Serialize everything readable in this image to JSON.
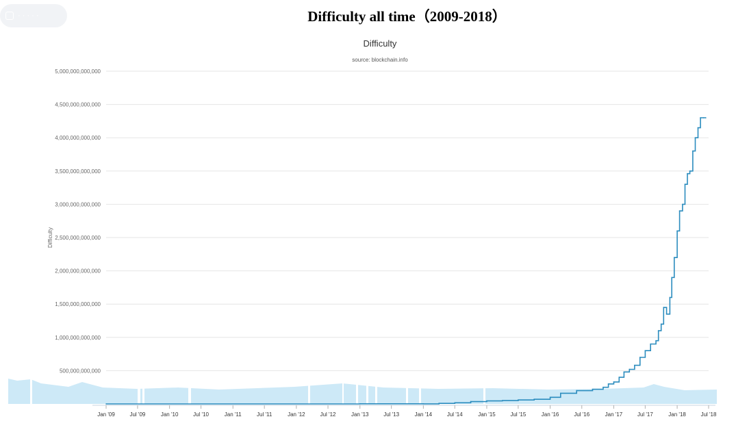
{
  "page": {
    "title": "Difficulty all time（2009-2018）",
    "overlay_label": "· · · · ·"
  },
  "chart_data": {
    "type": "line",
    "title": "Difficulty",
    "subtitle": "source: blockchain.info",
    "ylabel": "Difficulty",
    "xlabel": "",
    "ylim": [
      0,
      5000000000000
    ],
    "y_ticks": [
      500000000000,
      1000000000000,
      1500000000000,
      2000000000000,
      2500000000000,
      3000000000000,
      3500000000000,
      4000000000000,
      4500000000000,
      5000000000000
    ],
    "y_tick_labels": [
      "500,000,000,000",
      "1,000,000,000,000",
      "1,500,000,000,000",
      "2,000,000,000,000",
      "2,500,000,000,000",
      "3,000,000,000,000",
      "3,500,000,000,000",
      "4,000,000,000,000",
      "4,500,000,000,000",
      "5,000,000,000,000"
    ],
    "x_ticks": [
      "2009-01-01",
      "2009-07-01",
      "2010-01-01",
      "2010-07-01",
      "2011-01-01",
      "2011-07-01",
      "2012-01-01",
      "2012-07-01",
      "2013-01-01",
      "2013-07-01",
      "2014-01-01",
      "2014-07-01",
      "2015-01-01",
      "2015-07-01",
      "2016-01-01",
      "2016-07-01",
      "2017-01-01",
      "2017-07-01",
      "2018-01-01",
      "2018-07-01"
    ],
    "x_tick_labels": [
      "Jan '09",
      "Jul '09",
      "Jan '10",
      "Jul '10",
      "Jan '11",
      "Jul '11",
      "Jan '12",
      "Jul '12",
      "Jan '13",
      "Jul '13",
      "Jan '14",
      "Jul '14",
      "Jan '15",
      "Jul '15",
      "Jan '16",
      "Jul '16",
      "Jan '17",
      "Jul '17",
      "Jan '18",
      "Jul '18"
    ],
    "grid": true,
    "legend": "none",
    "colors": {
      "line": "#2b8cbe",
      "navigator": "#cde9f7",
      "grid": "#e6e6e6",
      "text": "#666666"
    },
    "series": [
      {
        "x": [
          "2009-01-01",
          "2013-01-01",
          "2014-01-01",
          "2014-04-01",
          "2014-07-01",
          "2014-10-01",
          "2015-01-01",
          "2015-04-01",
          "2015-07-01",
          "2015-10-01",
          "2016-01-01",
          "2016-03-01",
          "2016-06-01",
          "2016-09-01",
          "2016-11-01",
          "2016-12-01",
          "2017-01-01",
          "2017-02-01",
          "2017-03-01",
          "2017-04-01",
          "2017-05-01",
          "2017-06-01",
          "2017-07-01",
          "2017-08-01",
          "2017-09-01",
          "2017-09-15",
          "2017-10-01",
          "2017-10-15",
          "2017-11-01",
          "2017-11-20",
          "2017-12-01",
          "2017-12-15",
          "2018-01-01",
          "2018-01-15",
          "2018-02-01",
          "2018-02-15",
          "2018-03-01",
          "2018-03-15",
          "2018-04-01",
          "2018-04-15",
          "2018-05-01",
          "2018-05-15",
          "2018-06-01",
          "2018-06-15"
        ],
        "values": [
          0,
          2000000000,
          1500000000,
          8000000000,
          18000000000,
          35000000000,
          45000000000,
          50000000000,
          60000000000,
          70000000000,
          100000000000,
          160000000000,
          200000000000,
          220000000000,
          250000000000,
          300000000000,
          330000000000,
          400000000000,
          480000000000,
          520000000000,
          580000000000,
          700000000000,
          800000000000,
          900000000000,
          950000000000,
          1100000000000,
          1200000000000,
          1450000000000,
          1350000000000,
          1600000000000,
          1900000000000,
          2200000000000,
          2600000000000,
          2900000000000,
          3000000000000,
          3300000000000,
          3460000000000,
          3500000000000,
          3800000000000,
          4000000000000,
          4150000000000,
          4300000000000,
          4300000000000,
          4300000000000
        ]
      }
    ]
  }
}
